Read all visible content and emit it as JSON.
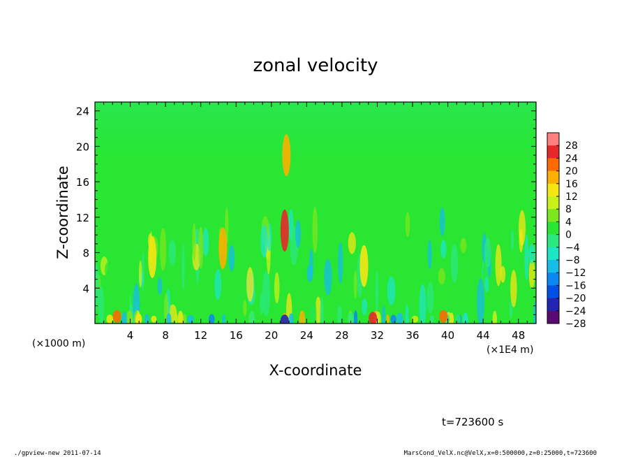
{
  "chart_data": {
    "type": "heatmap",
    "title": "zonal velocity",
    "xlabel": "X-coordinate",
    "ylabel": "Z-coordinate",
    "x_unit": "(×1E4 m)",
    "y_unit": "(×1000 m)",
    "xlim": [
      0,
      50
    ],
    "ylim": [
      0,
      25
    ],
    "x_ticks": [
      "4",
      "8",
      "12",
      "16",
      "20",
      "24",
      "28",
      "32",
      "36",
      "40",
      "44",
      "48"
    ],
    "y_ticks": [
      "4",
      "8",
      "12",
      "16",
      "20",
      "24"
    ],
    "colorbar": {
      "levels": [
        "28",
        "24",
        "20",
        "16",
        "12",
        "8",
        "4",
        "0",
        "−4",
        "−8",
        "−12",
        "−16",
        "−20",
        "−24",
        "−28"
      ],
      "range": [
        -30,
        30
      ],
      "colors": [
        "#5a0a73",
        "#2424b4",
        "#0050e6",
        "#0b87f3",
        "#16bde9",
        "#1ee6c5",
        "#2be880",
        "#28e632",
        "#7ce61e",
        "#c8f01a",
        "#f5e614",
        "#fcb000",
        "#fc6a00",
        "#e6282a",
        "#ff7f7f"
      ]
    },
    "features": [
      {
        "x": 21.5,
        "z": 10.5,
        "value": 22
      },
      {
        "x": 21.7,
        "z": 19,
        "value": 16
      },
      {
        "x": 14.5,
        "z": 8.5,
        "value": 14
      },
      {
        "x": 6.5,
        "z": 7.5,
        "value": 12
      },
      {
        "x": 30.5,
        "z": 6.5,
        "value": 13
      },
      {
        "x": 21.5,
        "z": 0.3,
        "value": -24
      },
      {
        "x": 2.5,
        "z": 0.8,
        "value": 20
      },
      {
        "x": 31.5,
        "z": 0.6,
        "value": 22
      },
      {
        "x": 39.5,
        "z": 0.8,
        "value": 20
      }
    ]
  },
  "footer": {
    "time": "t=723600 s",
    "left": "./gpview-new  2011-07-14",
    "right": "MarsCond_VelX.nc@VelX,x=0:500000,z=0:25000,t=723600"
  }
}
